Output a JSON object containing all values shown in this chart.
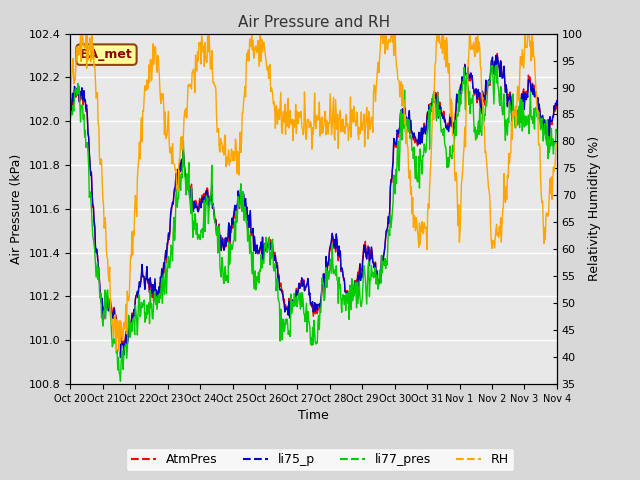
{
  "title": "Air Pressure and RH",
  "xlabel": "Time",
  "ylabel_left": "Air Pressure (kPa)",
  "ylabel_right": "Relativity Humidity (%)",
  "ylim_left": [
    100.8,
    102.4
  ],
  "ylim_right": [
    35,
    100
  ],
  "xtick_labels": [
    "Oct 20",
    "Oct 21",
    "Oct 22",
    "Oct 23",
    "Oct 24",
    "Oct 25",
    "Oct 26",
    "Oct 27",
    "Oct 28",
    "Oct 29",
    "Oct 30",
    "Oct 31",
    "Nov 1",
    "Nov 2",
    "Nov 3",
    "Nov 4"
  ],
  "yticks_left": [
    100.8,
    101.0,
    101.2,
    101.4,
    101.6,
    101.8,
    102.0,
    102.2,
    102.4
  ],
  "yticks_right": [
    35,
    40,
    45,
    50,
    55,
    60,
    65,
    70,
    75,
    80,
    85,
    90,
    95,
    100
  ],
  "legend_labels": [
    "AtmPres",
    "li75_p",
    "li77_pres",
    "RH"
  ],
  "legend_colors": [
    "#ff0000",
    "#0000cc",
    "#00cc00",
    "#ffa500"
  ],
  "annotation_text": "BA_met",
  "annotation_box_color": "#ffff99",
  "annotation_box_edge": "#8B4513",
  "fig_facecolor": "#d8d8d8",
  "plot_facecolor": "#e8e8e8"
}
